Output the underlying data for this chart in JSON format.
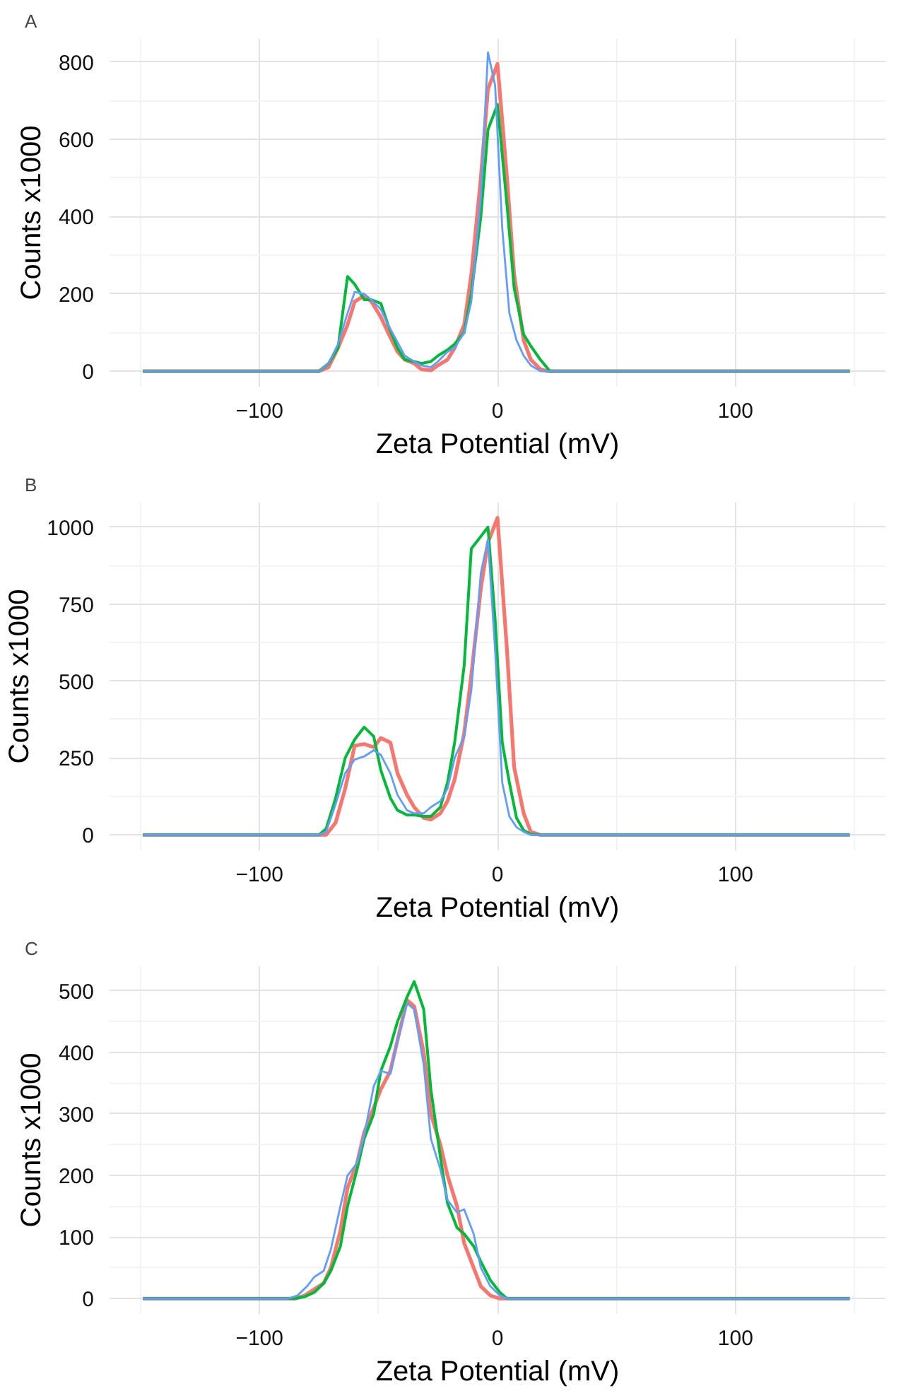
{
  "chart_data": [
    {
      "type": "line",
      "title": "A",
      "xlabel": "Zeta Potential (mV)",
      "ylabel": "Counts x1000",
      "xlim": [
        -163,
        163
      ],
      "ylim": [
        -40,
        860
      ],
      "xticks": [
        {
          "value": -150,
          "label": null
        },
        -100,
        {
          "value": -50,
          "label": null
        },
        0,
        {
          "value": 50,
          "label": null
        },
        100,
        {
          "value": 150,
          "label": null
        }
      ],
      "yticks": [
        0,
        {
          "value": 100,
          "label": null
        },
        200,
        {
          "value": 300,
          "label": null
        },
        400,
        {
          "value": 500,
          "label": null
        },
        600,
        {
          "value": 700,
          "label": null
        },
        800
      ],
      "grid": true,
      "series": [
        {
          "color": "#f8766d",
          "x": [
            -149,
            -75,
            -71,
            -67,
            -63,
            -60,
            -56,
            -53,
            -49,
            -46,
            -42,
            -39,
            -35,
            -32,
            -28,
            -25,
            -21,
            -18,
            -14,
            -11,
            -7,
            -4,
            0,
            4,
            7,
            11,
            14,
            18,
            21,
            148
          ],
          "values": [
            0,
            0,
            10,
            60,
            120,
            180,
            195,
            180,
            140,
            100,
            50,
            30,
            20,
            5,
            2,
            15,
            30,
            60,
            120,
            250,
            500,
            730,
            795,
            500,
            250,
            80,
            30,
            5,
            0,
            0
          ]
        },
        {
          "color": "#00ba38",
          "x": [
            -149,
            -75,
            -71,
            -67,
            -63,
            -60,
            -56,
            -53,
            -49,
            -46,
            -42,
            -39,
            -35,
            -32,
            -28,
            -25,
            -21,
            -18,
            -14,
            -11,
            -7,
            -4,
            0,
            4,
            7,
            11,
            14,
            18,
            22,
            148
          ],
          "values": [
            0,
            0,
            20,
            60,
            245,
            225,
            185,
            185,
            175,
            120,
            60,
            30,
            25,
            20,
            25,
            40,
            55,
            70,
            100,
            200,
            400,
            625,
            690,
            430,
            215,
            95,
            65,
            30,
            0,
            0
          ]
        },
        {
          "color": "#619cff",
          "x": [
            -149,
            -75,
            -71,
            -67,
            -63,
            -60,
            -56,
            -53,
            -49,
            -46,
            -42,
            -39,
            -35,
            -32,
            -28,
            -25,
            -21,
            -18,
            -14,
            -11,
            -7,
            -4,
            -1,
            2,
            5,
            8,
            11,
            14,
            18,
            148
          ],
          "values": [
            0,
            0,
            20,
            70,
            150,
            205,
            200,
            185,
            160,
            120,
            75,
            40,
            25,
            15,
            10,
            25,
            50,
            60,
            100,
            180,
            450,
            825,
            740,
            370,
            150,
            80,
            40,
            15,
            0,
            0
          ]
        }
      ]
    },
    {
      "type": "line",
      "title": "B",
      "xlabel": "Zeta Potential (mV)",
      "ylabel": "Counts x1000",
      "xlim": [
        -163,
        163
      ],
      "ylim": [
        -50,
        1080
      ],
      "xticks": [
        {
          "value": -150,
          "label": null
        },
        -100,
        {
          "value": -50,
          "label": null
        },
        0,
        {
          "value": 50,
          "label": null
        },
        100,
        {
          "value": 150,
          "label": null
        }
      ],
      "yticks": [
        0,
        {
          "value": 125,
          "label": null
        },
        250,
        {
          "value": 375,
          "label": null
        },
        500,
        {
          "value": 625,
          "label": null
        },
        750,
        {
          "value": 875,
          "label": null
        },
        1000
      ],
      "grid": true,
      "series": [
        {
          "color": "#f8766d",
          "x": [
            -149,
            -72,
            -68,
            -64,
            -60,
            -56,
            -52,
            -49,
            -45,
            -42,
            -38,
            -35,
            -31,
            -28,
            -24,
            -21,
            -18,
            -14,
            -11,
            -7,
            -4,
            0,
            4,
            7,
            11,
            14,
            18,
            148
          ],
          "values": [
            0,
            0,
            40,
            150,
            290,
            295,
            285,
            315,
            300,
            200,
            130,
            90,
            55,
            50,
            70,
            110,
            180,
            330,
            520,
            800,
            950,
            1030,
            600,
            220,
            70,
            10,
            0,
            0
          ]
        },
        {
          "color": "#00ba38",
          "x": [
            -149,
            -75,
            -72,
            -68,
            -64,
            -60,
            -56,
            -52,
            -49,
            -45,
            -42,
            -38,
            -35,
            -31,
            -28,
            -24,
            -21,
            -18,
            -14,
            -11,
            -7,
            -4,
            -1,
            2,
            5,
            8,
            11,
            14,
            18,
            148
          ],
          "values": [
            0,
            0,
            20,
            120,
            250,
            310,
            350,
            320,
            210,
            120,
            80,
            65,
            65,
            60,
            60,
            90,
            170,
            300,
            550,
            930,
            970,
            1000,
            700,
            300,
            170,
            55,
            15,
            2,
            0,
            0
          ]
        },
        {
          "color": "#619cff",
          "x": [
            -149,
            -75,
            -72,
            -68,
            -64,
            -60,
            -56,
            -52,
            -49,
            -45,
            -42,
            -38,
            -35,
            -31,
            -28,
            -24,
            -21,
            -18,
            -14,
            -11,
            -7,
            -4,
            -1,
            2,
            5,
            8,
            11,
            14,
            148
          ],
          "values": [
            0,
            0,
            10,
            100,
            200,
            245,
            255,
            275,
            260,
            200,
            130,
            80,
            70,
            70,
            90,
            110,
            150,
            250,
            320,
            470,
            850,
            960,
            600,
            170,
            60,
            25,
            10,
            0,
            0
          ]
        }
      ]
    },
    {
      "type": "line",
      "title": "C",
      "xlabel": "Zeta Potential (mV)",
      "ylabel": "Counts x1000",
      "xlim": [
        -163,
        163
      ],
      "ylim": [
        -25,
        540
      ],
      "xticks": [
        {
          "value": -150,
          "label": null
        },
        -100,
        {
          "value": -50,
          "label": null
        },
        0,
        {
          "value": 50,
          "label": null
        },
        100,
        {
          "value": 150,
          "label": null
        }
      ],
      "yticks": [
        0,
        {
          "value": 50,
          "label": null
        },
        100,
        {
          "value": 150,
          "label": null
        },
        200,
        {
          "value": 250,
          "label": null
        },
        300,
        {
          "value": 350,
          "label": null
        },
        400,
        {
          "value": 450,
          "label": null
        },
        500
      ],
      "grid": true,
      "series": [
        {
          "color": "#f8766d",
          "x": [
            -149,
            -85,
            -81,
            -77,
            -73,
            -70,
            -66,
            -63,
            -59,
            -56,
            -52,
            -49,
            -45,
            -42,
            -38,
            -35,
            -31,
            -28,
            -24,
            -21,
            -17,
            -14,
            -10,
            -7,
            -3,
            1,
            148
          ],
          "values": [
            0,
            0,
            5,
            15,
            25,
            50,
            110,
            180,
            220,
            270,
            310,
            340,
            370,
            420,
            485,
            475,
            400,
            300,
            250,
            200,
            150,
            90,
            50,
            20,
            5,
            0,
            0
          ]
        },
        {
          "color": "#00ba38",
          "x": [
            -149,
            -85,
            -81,
            -77,
            -73,
            -70,
            -66,
            -63,
            -59,
            -56,
            -52,
            -49,
            -45,
            -42,
            -38,
            -35,
            -31,
            -28,
            -24,
            -21,
            -17,
            -14,
            -10,
            -7,
            -3,
            1,
            4,
            148
          ],
          "values": [
            0,
            0,
            3,
            10,
            25,
            45,
            85,
            150,
            210,
            260,
            300,
            370,
            410,
            450,
            490,
            515,
            470,
            340,
            230,
            155,
            115,
            105,
            85,
            60,
            30,
            10,
            0,
            0
          ]
        },
        {
          "color": "#619cff",
          "x": [
            -149,
            -88,
            -84,
            -80,
            -77,
            -73,
            -70,
            -66,
            -63,
            -59,
            -56,
            -52,
            -49,
            -45,
            -42,
            -38,
            -35,
            -31,
            -28,
            -24,
            -21,
            -17,
            -14,
            -10,
            -7,
            -3,
            1,
            4,
            148
          ],
          "values": [
            0,
            0,
            5,
            20,
            35,
            45,
            80,
            150,
            200,
            220,
            265,
            345,
            370,
            365,
            420,
            480,
            470,
            380,
            260,
            210,
            160,
            140,
            145,
            105,
            50,
            20,
            5,
            0,
            0
          ]
        }
      ]
    }
  ]
}
